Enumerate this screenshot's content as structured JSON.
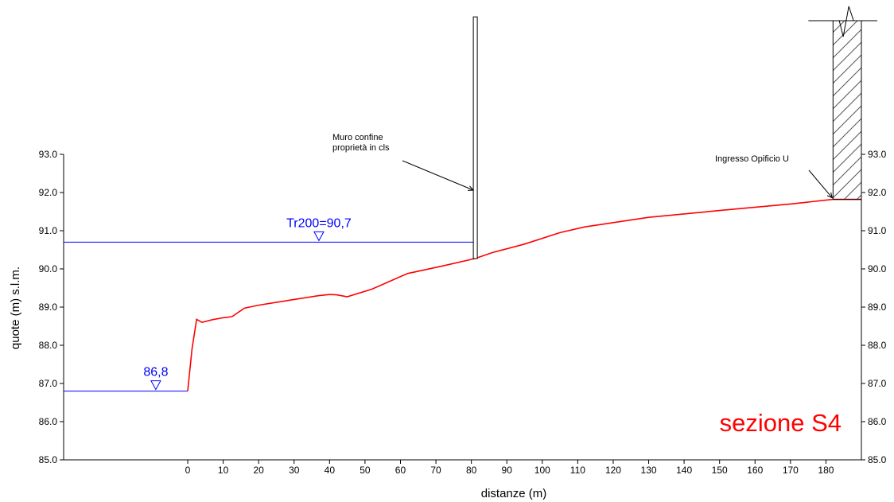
{
  "chart_data": {
    "type": "line",
    "title": "sezione S4",
    "xlabel": "distanze (m)",
    "ylabel": "quote (m) s.l.m.",
    "xlim": [
      -35,
      190
    ],
    "ylim": [
      85.0,
      93.0
    ],
    "x_ticks": [
      0,
      10,
      20,
      30,
      40,
      50,
      60,
      70,
      80,
      90,
      100,
      110,
      120,
      130,
      140,
      150,
      160,
      170,
      180
    ],
    "y_ticks": [
      "85.0",
      "86.0",
      "87.0",
      "88.0",
      "89.0",
      "90.0",
      "91.0",
      "92.0",
      "93.0"
    ],
    "grid": false,
    "series": [
      {
        "color": "#ff0000",
        "x": [
          0,
          1.2,
          2.5,
          4,
          7,
          10,
          12.5,
          16,
          20,
          30,
          37,
          40,
          42,
          45,
          52,
          62,
          72,
          81,
          86,
          95,
          105,
          112,
          130,
          150,
          170,
          182,
          190
        ],
        "y": [
          86.8,
          87.9,
          88.68,
          88.6,
          88.67,
          88.72,
          88.75,
          88.97,
          89.05,
          89.2,
          89.3,
          89.33,
          89.32,
          89.27,
          89.47,
          89.88,
          90.08,
          90.27,
          90.43,
          90.65,
          90.95,
          91.1,
          91.35,
          91.53,
          91.7,
          91.82,
          91.82
        ]
      }
    ],
    "water_levels": [
      {
        "label": "86,8",
        "value": 86.8,
        "x_from": -35,
        "x_to": 0,
        "marker_x": -9,
        "color": "#0000ff"
      },
      {
        "label": "Tr200=90,7",
        "value": 90.7,
        "x_from": -35,
        "x_to": 81,
        "marker_x": 37,
        "color": "#0000ff"
      }
    ],
    "annotations": [
      {
        "lines": [
          "Muro confine",
          "proprietà in cls"
        ],
        "target_x": 81,
        "target_y": 92.0
      },
      {
        "lines": [
          "Ingresso Opificio U"
        ],
        "target_x": 182,
        "target_y": 91.82
      }
    ],
    "wall": {
      "x": 81,
      "y_base": 90.27,
      "y_top": 96.6
    },
    "building": {
      "x_from": 182,
      "x_to": 190,
      "y_base": 91.82
    }
  }
}
